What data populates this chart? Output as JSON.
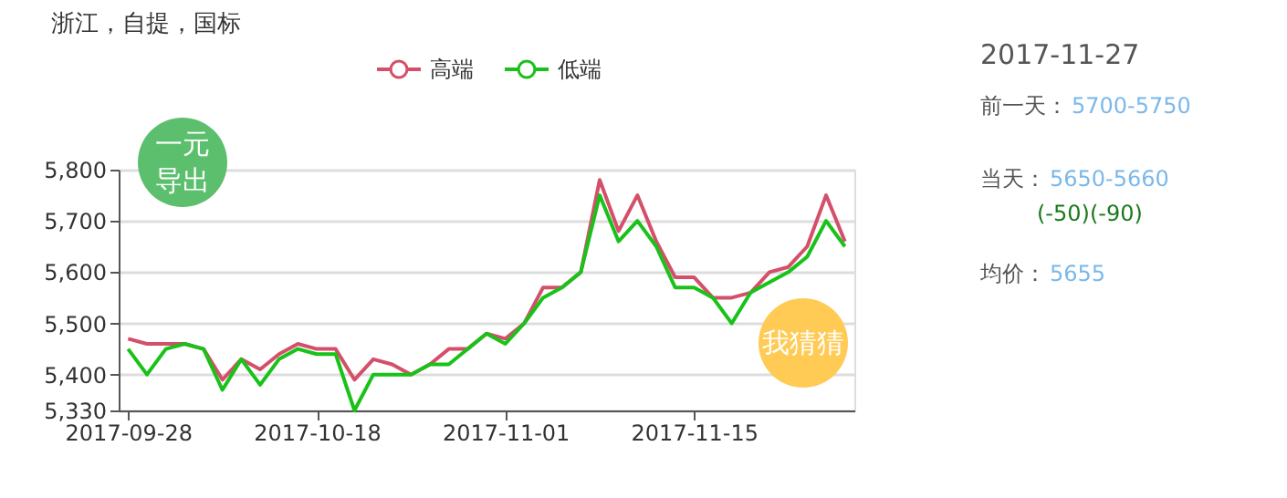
{
  "chart_data": {
    "type": "line",
    "title": "浙江，自提，国标",
    "categories": [
      "2017-09-28",
      null,
      null,
      null,
      null,
      null,
      null,
      null,
      null,
      null,
      "2017-10-18",
      null,
      null,
      null,
      null,
      null,
      null,
      null,
      null,
      null,
      "2017-11-01",
      null,
      null,
      null,
      null,
      null,
      null,
      null,
      null,
      null,
      "2017-11-15",
      null,
      null,
      null,
      null,
      null,
      null,
      null,
      null
    ],
    "series": [
      {
        "name": "高端",
        "color": "#d4506a",
        "values": [
          5470,
          5460,
          5460,
          5460,
          5450,
          5390,
          5430,
          5410,
          5440,
          5460,
          5450,
          5450,
          5390,
          5430,
          5420,
          5400,
          5420,
          5450,
          5450,
          5480,
          5470,
          5500,
          5570,
          5570,
          5600,
          5780,
          5680,
          5750,
          5660,
          5590,
          5590,
          5550,
          5550,
          5560,
          5600,
          5610,
          5650,
          5750,
          5660
        ]
      },
      {
        "name": "低端",
        "color": "#19c219",
        "values": [
          5450,
          5400,
          5450,
          5460,
          5450,
          5370,
          5430,
          5380,
          5430,
          5450,
          5440,
          5440,
          5330,
          5400,
          5400,
          5400,
          5420,
          5420,
          5450,
          5480,
          5460,
          5500,
          5550,
          5570,
          5600,
          5750,
          5660,
          5700,
          5650,
          5570,
          5570,
          5550,
          5500,
          5560,
          5580,
          5600,
          5630,
          5700,
          5650
        ]
      }
    ],
    "ylim": [
      5330,
      5800
    ],
    "yticks": [
      {
        "value": 5330,
        "label": "5,330"
      },
      {
        "value": 5400,
        "label": "5,400"
      },
      {
        "value": 5500,
        "label": "5,500"
      },
      {
        "value": 5600,
        "label": "5,600"
      },
      {
        "value": 5700,
        "label": "5,700"
      },
      {
        "value": 5800,
        "label": "5,800"
      }
    ],
    "grid": "y",
    "legend": "top",
    "line_style": "solid",
    "annotations": [
      "2017-11-27",
      "前一天：5700-5750",
      "当天：5650-5660",
      "(-50)(-90)",
      "均价：5655",
      "一元导出",
      "我猜猜"
    ]
  }
}
